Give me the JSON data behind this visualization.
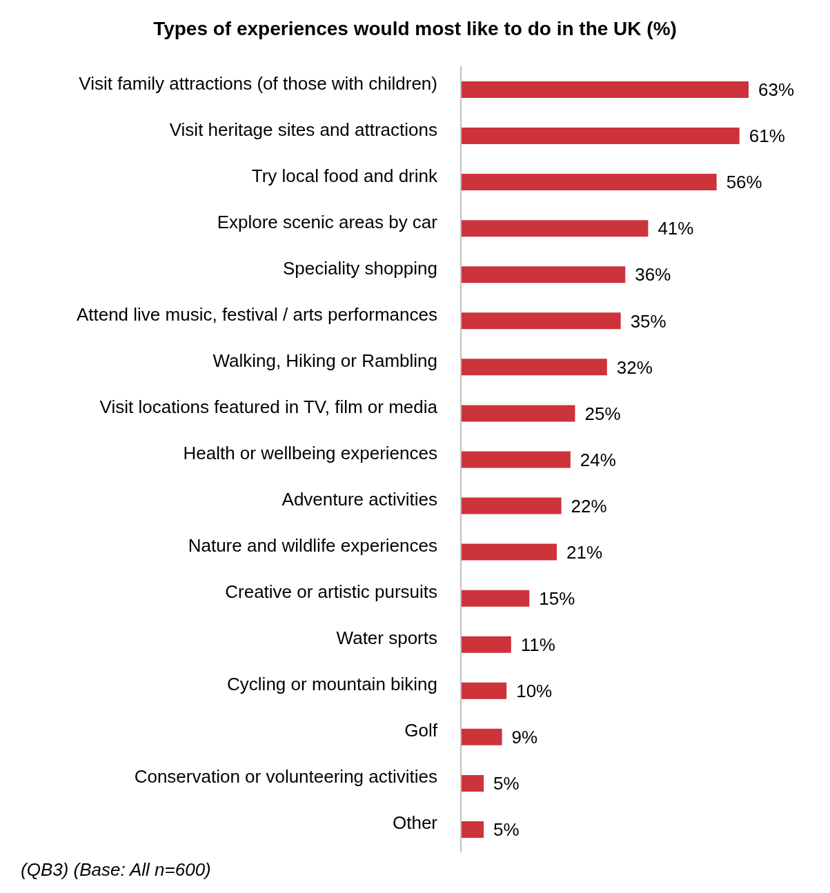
{
  "chart_data": {
    "type": "bar",
    "orientation": "horizontal",
    "title": "Types of experiences would most like to do in the UK (%)",
    "categories": [
      "Visit family attractions (of those with children)",
      "Visit heritage sites and attractions",
      "Try local food and drink",
      "Explore scenic areas by car",
      "Speciality shopping",
      "Attend live music, festival / arts performances",
      "Walking, Hiking or Rambling",
      "Visit locations featured in TV, film or media",
      "Health or wellbeing experiences",
      "Adventure activities",
      "Nature and wildlife experiences",
      "Creative or artistic pursuits",
      "Water sports",
      "Cycling or mountain biking",
      "Golf",
      "Conservation or volunteering activities",
      "Other"
    ],
    "values": [
      63,
      61,
      56,
      41,
      36,
      35,
      32,
      25,
      24,
      22,
      21,
      15,
      11,
      10,
      9,
      5,
      5
    ],
    "value_labels": [
      "63%",
      "61%",
      "56%",
      "41%",
      "36%",
      "35%",
      "32%",
      "25%",
      "24%",
      "22%",
      "21%",
      "15%",
      "11%",
      "10%",
      "9%",
      "5%",
      "5%"
    ],
    "color": "#cc333a",
    "annotations": [
      "(QB3) (Base: All n=600)"
    ]
  }
}
